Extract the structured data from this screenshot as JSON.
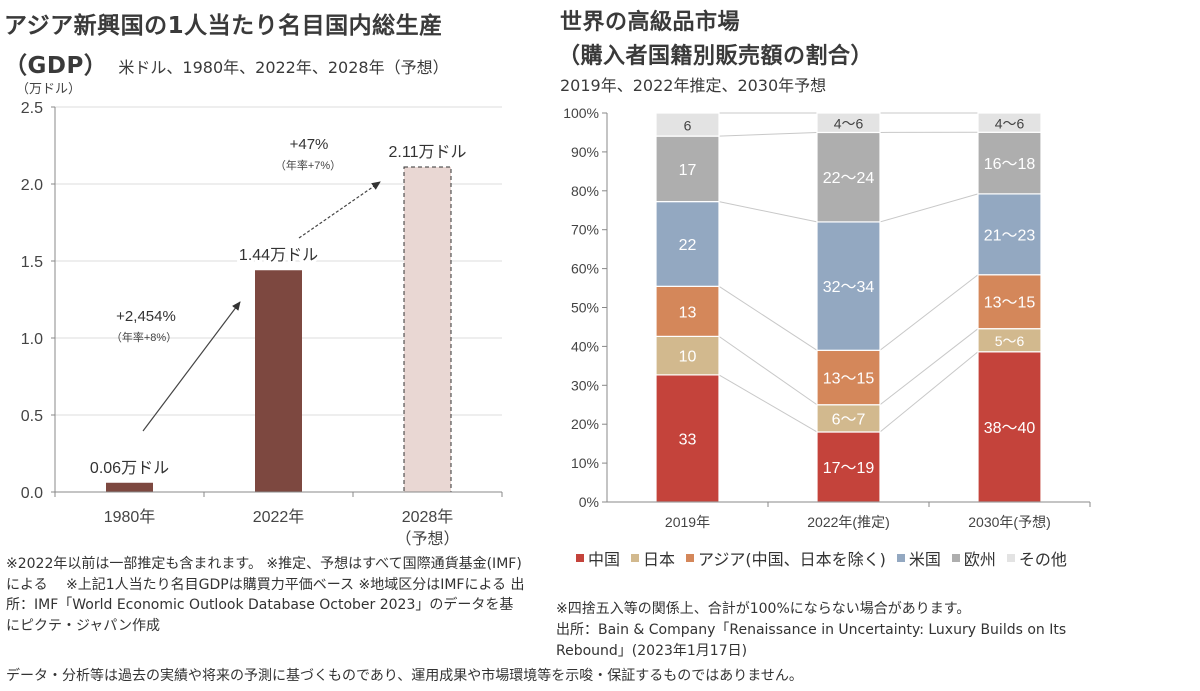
{
  "left_panel": {
    "title_line1": "アジア新興国の1人当たり名目国内総生産",
    "title_line2_bold": "（GDP）",
    "title_line2_rest": "米ドル、1980年、2022年、2028年（予想）",
    "unit_label": "（万ドル）",
    "notes": "※2022年以前は一部推定も含まれます。 ※推定、予想はすべて国際通貨基金(IMF)による　 ※上記1人当たり名目GDPは購買力平価ベース ※地域区分はIMFによる 出所：IMF「World Economic Outlook Database October 2023」のデータを基にピクテ・ジャパン作成"
  },
  "right_panel": {
    "title_line1": "世界の高級品市場",
    "title_line2": "（購入者国籍別販売額の割合）",
    "subtitle": "2019年、2022年推定、2030年予想",
    "notes_line1": "※四捨五入等の関係上、合計が100%にならない場合があります。",
    "notes_line2": "出所：Bain & Company「Renaissance in Uncertainty: Luxury Builds on Its Rebound」(2023年1月17日)"
  },
  "footer": {
    "disclaimer": "データ・分析等は過去の実績や将来の予測に基づくものであり、運用成果や市場環境等を示唆・保証するものではありません。"
  },
  "chart_data": [
    {
      "type": "bar",
      "title": "アジア新興国の1人当たり名目国内総生産（GDP）",
      "ylabel": "（万ドル）",
      "xlabel": "",
      "ylim": [
        0,
        2.5
      ],
      "yticks": [
        "0.0",
        "0.5",
        "1.0",
        "1.5",
        "2.0",
        "2.5"
      ],
      "ytick_values": [
        0,
        0.5,
        1.0,
        1.5,
        2.0,
        2.5
      ],
      "grid": true,
      "categories": [
        "1980年",
        "2022年",
        "2028年"
      ],
      "category_sublabels": [
        "",
        "",
        "（予想）"
      ],
      "values": [
        0.06,
        1.44,
        2.11
      ],
      "data_labels": [
        "0.06万ドル",
        "1.44万ドル",
        "2.11万ドル"
      ],
      "forecast": [
        false,
        false,
        true
      ],
      "colors": {
        "actual": "#7d4840",
        "forecast_fill": "#e9d7d3",
        "forecast_border": "#333333"
      },
      "annotations": [
        {
          "from": "1980年",
          "to": "2022年",
          "text": "+2,454%",
          "subtext": "（年率+8%）",
          "style": "solid"
        },
        {
          "from": "2022年",
          "to": "2028年",
          "text": "+47%",
          "subtext": "（年率+7%）",
          "style": "dashed"
        }
      ]
    },
    {
      "type": "bar",
      "stacked": true,
      "title": "世界の高級品市場（購入者国籍別販売額の割合）",
      "ylim": [
        0,
        100
      ],
      "yticks": [
        "0%",
        "10%",
        "20%",
        "30%",
        "40%",
        "50%",
        "60%",
        "70%",
        "80%",
        "90%",
        "100%"
      ],
      "ytick_values": [
        0,
        10,
        20,
        30,
        40,
        50,
        60,
        70,
        80,
        90,
        100
      ],
      "grid": false,
      "legend_position": "bottom",
      "categories": [
        "2019年",
        "2022年(推定)",
        "2030年(予想)"
      ],
      "series": [
        {
          "name": "中国",
          "color": "#c4433b",
          "text_color": "#ffffff",
          "values": [
            33,
            18,
            39
          ],
          "labels": [
            "33",
            "17～19",
            "38～40"
          ]
        },
        {
          "name": "日本",
          "color": "#d2b98e",
          "text_color": "#ffffff",
          "values": [
            10,
            7,
            6
          ],
          "labels": [
            "10",
            "6～7",
            "5～6"
          ]
        },
        {
          "name": "アジア(中国、日本を除く)",
          "color": "#d4875a",
          "text_color": "#ffffff",
          "values": [
            13,
            14,
            14
          ],
          "labels": [
            "13",
            "13～15",
            "13～15"
          ]
        },
        {
          "name": "米国",
          "color": "#93a8c1",
          "text_color": "#ffffff",
          "values": [
            22,
            33,
            21
          ],
          "labels": [
            "22",
            "32～34",
            "21～23"
          ]
        },
        {
          "name": "欧州",
          "color": "#aeaeae",
          "text_color": "#ffffff",
          "values": [
            17,
            23,
            16
          ],
          "labels": [
            "17",
            "22～24",
            "16～18"
          ]
        },
        {
          "name": "その他",
          "color": "#e3e3e3",
          "text_color": "#444444",
          "values": [
            6,
            5,
            5
          ],
          "labels": [
            "6",
            "4～6",
            "4～6"
          ]
        }
      ]
    }
  ]
}
